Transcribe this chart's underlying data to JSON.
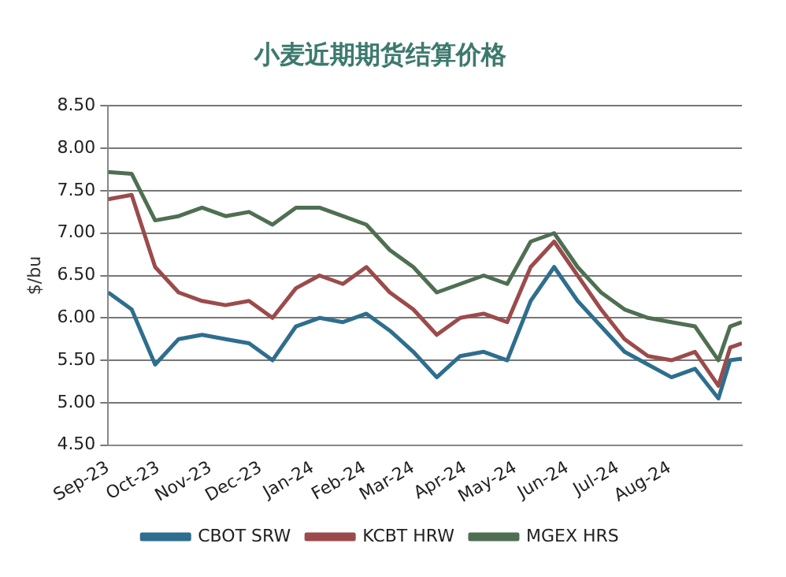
{
  "chart_data": {
    "type": "line",
    "title": "小麦近期期货结算价格",
    "ylabel": "$/bu",
    "x": [
      "2023-09-01",
      "2023-09-15",
      "2023-09-29",
      "2023-10-13",
      "2023-10-27",
      "2023-11-10",
      "2023-11-24",
      "2023-12-08",
      "2023-12-22",
      "2024-01-05",
      "2024-01-19",
      "2024-02-02",
      "2024-02-16",
      "2024-03-01",
      "2024-03-15",
      "2024-03-29",
      "2024-04-12",
      "2024-04-26",
      "2024-05-10",
      "2024-05-24",
      "2024-06-07",
      "2024-06-21",
      "2024-07-05",
      "2024-07-19",
      "2024-08-02",
      "2024-08-16",
      "2024-08-30",
      "2024-09-06",
      "2024-09-13"
    ],
    "series": [
      {
        "name": "CBOT SRW",
        "color": "#2e6e8e",
        "values": [
          6.3,
          6.1,
          5.45,
          5.75,
          5.8,
          5.75,
          5.7,
          5.5,
          5.9,
          6.0,
          5.95,
          6.05,
          5.85,
          5.6,
          5.3,
          5.55,
          5.6,
          5.5,
          6.2,
          6.6,
          6.2,
          5.9,
          5.6,
          5.45,
          5.3,
          5.4,
          5.05,
          5.5,
          5.52
        ]
      },
      {
        "name": "KCBT HRW",
        "color": "#9b4b4b",
        "values": [
          7.4,
          7.45,
          6.6,
          6.3,
          6.2,
          6.15,
          6.2,
          6.0,
          6.35,
          6.5,
          6.4,
          6.6,
          6.3,
          6.1,
          5.8,
          6.0,
          6.05,
          5.95,
          6.6,
          6.9,
          6.5,
          6.1,
          5.75,
          5.55,
          5.5,
          5.6,
          5.2,
          5.65,
          5.7
        ]
      },
      {
        "name": "MGEX HRS",
        "color": "#4f6f52",
        "values": [
          7.72,
          7.7,
          7.15,
          7.2,
          7.3,
          7.2,
          7.25,
          7.1,
          7.3,
          7.3,
          7.2,
          7.1,
          6.8,
          6.6,
          6.3,
          6.4,
          6.5,
          6.4,
          6.9,
          7.0,
          6.6,
          6.3,
          6.1,
          6.0,
          5.95,
          5.9,
          5.5,
          5.9,
          5.95
        ]
      }
    ],
    "xlim": [
      "2023-09-01",
      "2024-09-13"
    ],
    "xticks": [
      {
        "value": "2023-09-01",
        "label": "Sep-23"
      },
      {
        "value": "2023-10-01",
        "label": "Oct-23"
      },
      {
        "value": "2023-11-01",
        "label": "Nov-23"
      },
      {
        "value": "2023-12-01",
        "label": "Dec-23"
      },
      {
        "value": "2024-01-01",
        "label": "Jan-24"
      },
      {
        "value": "2024-02-01",
        "label": "Feb-24"
      },
      {
        "value": "2024-03-01",
        "label": "Mar-24"
      },
      {
        "value": "2024-04-01",
        "label": "Apr-24"
      },
      {
        "value": "2024-05-01",
        "label": "May-24"
      },
      {
        "value": "2024-06-01",
        "label": "Jun-24"
      },
      {
        "value": "2024-07-01",
        "label": "Jul-24"
      },
      {
        "value": "2024-08-01",
        "label": "Aug-24"
      }
    ],
    "ylim": [
      4.5,
      8.5
    ],
    "yticks": [
      {
        "value": 4.5,
        "label": "4.50"
      },
      {
        "value": 5,
        "label": "5.00"
      },
      {
        "value": 5.5,
        "label": "5.50"
      },
      {
        "value": 6,
        "label": "6.00"
      },
      {
        "value": 6.5,
        "label": "6.50"
      },
      {
        "value": 7,
        "label": "7.00"
      },
      {
        "value": 7.5,
        "label": "7.50"
      },
      {
        "value": 8,
        "label": "8.00"
      },
      {
        "value": 8.5,
        "label": "8.50"
      }
    ],
    "grid": "y",
    "legend": "bottom",
    "marker": "none",
    "line_style": "solid"
  }
}
